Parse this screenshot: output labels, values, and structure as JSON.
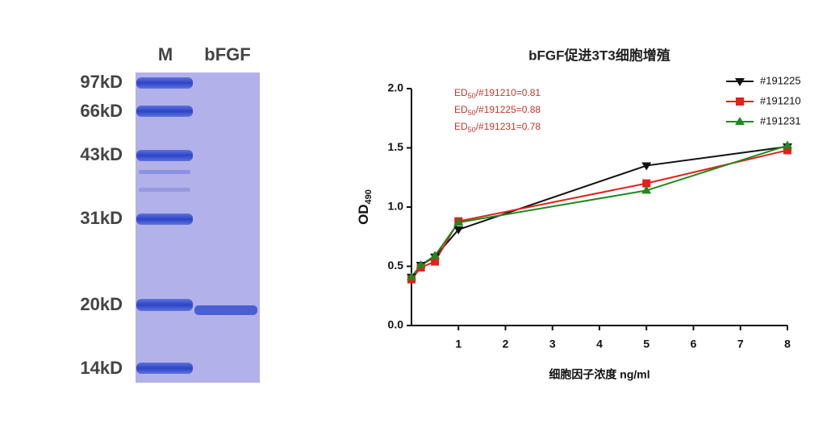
{
  "gel": {
    "lanes": [
      "M",
      "bFGF"
    ],
    "markers": [
      "97kD",
      "66kD",
      "43kD",
      "31kD",
      "20kD",
      "14kD"
    ]
  },
  "chart_data": {
    "type": "line",
    "title": "bFGF促进3T3细胞增殖",
    "x_label": "细胞因子浓度 ng/ml",
    "y_label": {
      "text": "OD",
      "sub": "490"
    },
    "annotations": [
      {
        "text": "ED",
        "sub": "50",
        "rest": "/#191210=0.81"
      },
      {
        "text": "ED",
        "sub": "50",
        "rest": "/#191225=0.88"
      },
      {
        "text": "ED",
        "sub": "50",
        "rest": "/#191231=0.78"
      }
    ],
    "annotation_color": "#c0392b",
    "x": [
      0,
      0.2,
      0.5,
      1,
      5,
      8
    ],
    "series": [
      {
        "name": "#191225",
        "color": "#111111",
        "marker": "triangle-down",
        "values": [
          0.41,
          0.51,
          0.58,
          0.81,
          1.35,
          1.51
        ]
      },
      {
        "name": "#191210",
        "color": "#e3201b",
        "marker": "square",
        "values": [
          0.39,
          0.49,
          0.54,
          0.88,
          1.2,
          1.48
        ]
      },
      {
        "name": "#191231",
        "color": "#1e8a1e",
        "marker": "triangle-up",
        "values": [
          0.41,
          0.51,
          0.59,
          0.87,
          1.14,
          1.52
        ]
      }
    ],
    "xlim": [
      0,
      8
    ],
    "xticks": [
      1,
      2,
      3,
      4,
      5,
      6,
      7,
      8
    ],
    "ylim": [
      0,
      2
    ],
    "yticks": [
      {
        "value": 0,
        "label": "0.0"
      },
      {
        "value": 0.5,
        "label": "0.5"
      },
      {
        "value": 1,
        "label": "1.0"
      },
      {
        "value": 1.5,
        "label": "1.5"
      },
      {
        "value": 2,
        "label": "2.0"
      }
    ],
    "legend": "top-right"
  }
}
